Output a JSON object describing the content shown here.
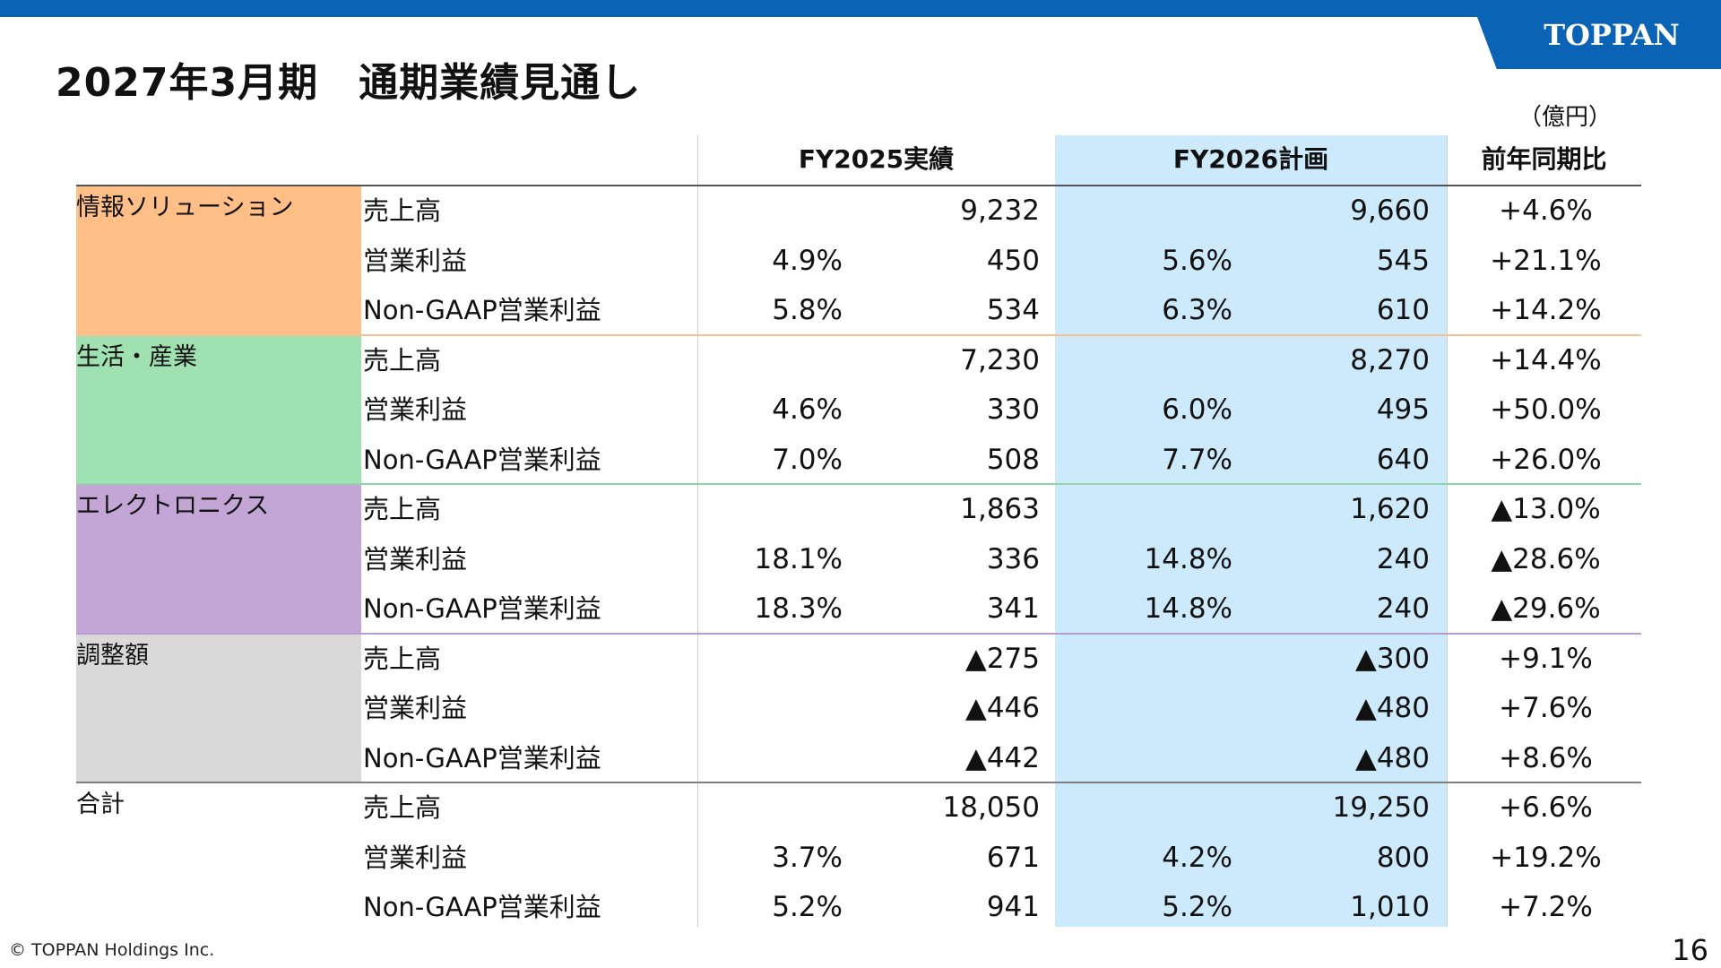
{
  "brand": {
    "logo": "TOPPAN",
    "color": "#0a63b5"
  },
  "title": "2027年3月期　通期業績見通し",
  "unit": "（億円）",
  "header": {
    "fy2025": "FY2025実績",
    "fy2026": "FY2026計画",
    "yoy": "前年同期比"
  },
  "segments": [
    {
      "name": "情報ソリューション",
      "color": "#ffbf87",
      "rows": [
        {
          "metric": "売上高",
          "fy2025_margin": "",
          "fy2025": "9,232",
          "fy2026_margin": "",
          "fy2026": "9,660",
          "yoy": "+4.6%"
        },
        {
          "metric": "営業利益",
          "fy2025_margin": "4.9%",
          "fy2025": "450",
          "fy2026_margin": "5.6%",
          "fy2026": "545",
          "yoy": "+21.1%"
        },
        {
          "metric": "Non-GAAP営業利益",
          "fy2025_margin": "5.8%",
          "fy2025": "534",
          "fy2026_margin": "6.3%",
          "fy2026": "610",
          "yoy": "+14.2%"
        }
      ]
    },
    {
      "name": "生活・産業",
      "color": "#9fe1b0",
      "rows": [
        {
          "metric": "売上高",
          "fy2025_margin": "",
          "fy2025": "7,230",
          "fy2026_margin": "",
          "fy2026": "8,270",
          "yoy": "+14.4%"
        },
        {
          "metric": "営業利益",
          "fy2025_margin": "4.6%",
          "fy2025": "330",
          "fy2026_margin": "6.0%",
          "fy2026": "495",
          "yoy": "+50.0%"
        },
        {
          "metric": "Non-GAAP営業利益",
          "fy2025_margin": "7.0%",
          "fy2025": "508",
          "fy2026_margin": "7.7%",
          "fy2026": "640",
          "yoy": "+26.0%"
        }
      ]
    },
    {
      "name": "エレクトロニクス",
      "color": "#c3a6d6",
      "rows": [
        {
          "metric": "売上高",
          "fy2025_margin": "",
          "fy2025": "1,863",
          "fy2026_margin": "",
          "fy2026": "1,620",
          "yoy": "▲13.0%"
        },
        {
          "metric": "営業利益",
          "fy2025_margin": "18.1%",
          "fy2025": "336",
          "fy2026_margin": "14.8%",
          "fy2026": "240",
          "yoy": "▲28.6%"
        },
        {
          "metric": "Non-GAAP営業利益",
          "fy2025_margin": "18.3%",
          "fy2025": "341",
          "fy2026_margin": "14.8%",
          "fy2026": "240",
          "yoy": "▲29.6%"
        }
      ]
    },
    {
      "name": "調整額",
      "color": "#d9d9d9",
      "rows": [
        {
          "metric": "売上高",
          "fy2025_margin": "",
          "fy2025": "▲275",
          "fy2026_margin": "",
          "fy2026": "▲300",
          "yoy": "+9.1%"
        },
        {
          "metric": "営業利益",
          "fy2025_margin": "",
          "fy2025": "▲446",
          "fy2026_margin": "",
          "fy2026": "▲480",
          "yoy": "+7.6%"
        },
        {
          "metric": "Non-GAAP営業利益",
          "fy2025_margin": "",
          "fy2025": "▲442",
          "fy2026_margin": "",
          "fy2026": "▲480",
          "yoy": "+8.6%"
        }
      ]
    },
    {
      "name": "合計",
      "color": "#ffffff",
      "rows": [
        {
          "metric": "売上高",
          "fy2025_margin": "",
          "fy2025": "18,050",
          "fy2026_margin": "",
          "fy2026": "19,250",
          "yoy": "+6.6%"
        },
        {
          "metric": "営業利益",
          "fy2025_margin": "3.7%",
          "fy2025": "671",
          "fy2026_margin": "4.2%",
          "fy2026": "800",
          "yoy": "+19.2%"
        },
        {
          "metric": "Non-GAAP営業利益",
          "fy2025_margin": "5.2%",
          "fy2025": "941",
          "fy2026_margin": "5.2%",
          "fy2026": "1,010",
          "yoy": "+7.2%"
        }
      ]
    }
  ],
  "footer": {
    "copyright": "© TOPPAN Holdings Inc.",
    "page": "16"
  }
}
